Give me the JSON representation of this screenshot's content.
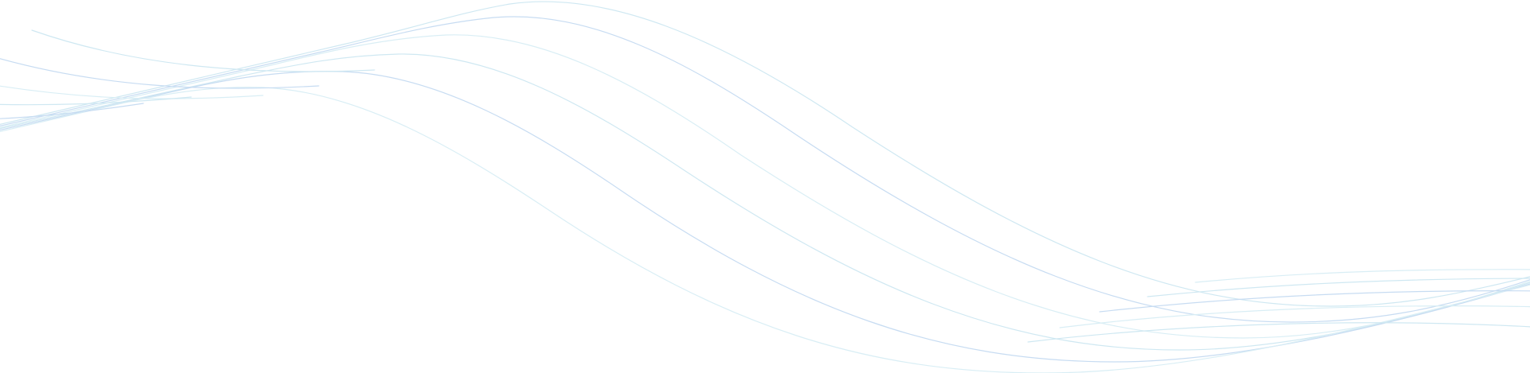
{
  "background": "#ffffff",
  "line_colors": {
    "primary": "#cfe8f2",
    "secondary": "#c7dcf2",
    "tertiary": "#d9eef5"
  },
  "wave_count": 6
}
